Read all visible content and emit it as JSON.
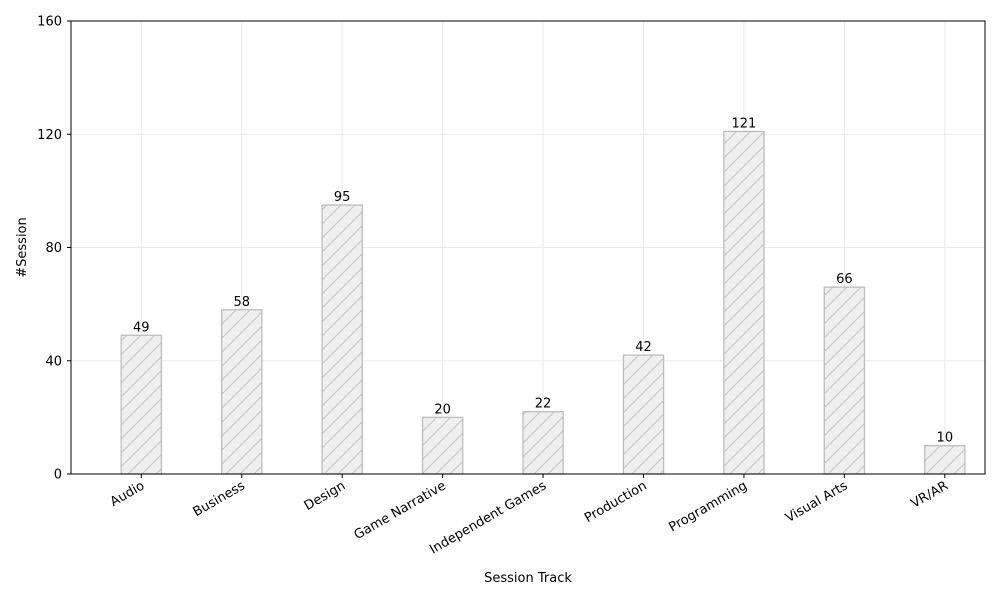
{
  "chart_data": {
    "type": "bar",
    "title": "",
    "xlabel": "Session Track",
    "ylabel": "#Session",
    "categories": [
      "Audio",
      "Business",
      "Design",
      "Game Narrative",
      "Independent Games",
      "Production",
      "Programming",
      "Visual Arts",
      "VR/AR"
    ],
    "values": [
      49,
      58,
      95,
      20,
      22,
      42,
      121,
      66,
      10
    ],
    "ylim": [
      0,
      160
    ],
    "yticks": [
      0,
      40,
      80,
      120,
      160
    ],
    "grid": true,
    "legend": "none",
    "bar_fill": "#efefef",
    "bar_edge": "#bdbdbd",
    "hatch": "diagonal"
  }
}
